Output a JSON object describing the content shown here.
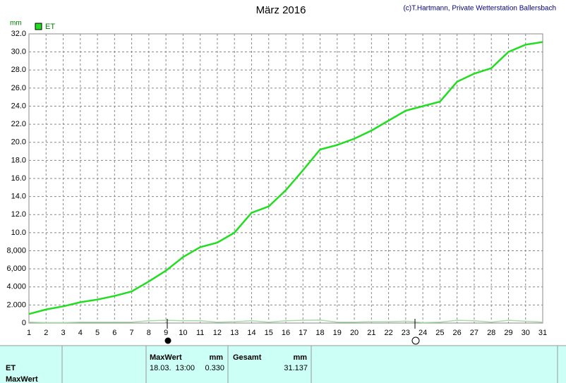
{
  "chart_data": {
    "type": "line",
    "title": "März 2016",
    "subtitle": "(c)T.Hartmann, Private Wetterstation Ballersbach",
    "y_label": "mm",
    "x": [
      1,
      2,
      3,
      4,
      5,
      6,
      7,
      8,
      9,
      10,
      11,
      12,
      13,
      14,
      15,
      16,
      17,
      18,
      19,
      20,
      21,
      22,
      23,
      24,
      25,
      26,
      27,
      28,
      29,
      30,
      31
    ],
    "series": [
      {
        "name": "ET",
        "color": "#22dd22",
        "values": [
          1.0,
          1.5,
          1.85,
          2.3,
          2.6,
          3.0,
          3.5,
          4.6,
          5.8,
          7.3,
          8.4,
          8.9,
          10.0,
          12.2,
          12.9,
          14.7,
          16.9,
          19.2,
          19.7,
          20.4,
          21.3,
          22.4,
          23.5,
          24.0,
          24.5,
          26.7,
          27.6,
          28.2,
          30.0,
          30.8,
          31.1
        ]
      },
      {
        "color": "#a9d9a9",
        "values": [
          0.1,
          0.05,
          0.05,
          0.1,
          0.1,
          0.1,
          0.1,
          0.25,
          0.3,
          0.25,
          0.25,
          0.1,
          0.15,
          0.25,
          0.1,
          0.25,
          0.3,
          0.33,
          0.1,
          0.1,
          0.15,
          0.15,
          0.2,
          0.05,
          0.1,
          0.3,
          0.25,
          0.1,
          0.3,
          0.2,
          0.1
        ]
      }
    ],
    "xlim": [
      1,
      31
    ],
    "xticks": [
      1,
      2,
      3,
      4,
      5,
      6,
      7,
      8,
      9,
      10,
      11,
      12,
      13,
      14,
      15,
      16,
      17,
      18,
      19,
      20,
      21,
      22,
      23,
      24,
      25,
      26,
      27,
      28,
      29,
      30,
      31
    ],
    "ylim": [
      0,
      32
    ],
    "yticks": [
      0,
      {
        "value": 2,
        "label": "2.000"
      },
      {
        "value": 4,
        "label": "4.000"
      },
      {
        "value": 6,
        "label": "6,000"
      },
      {
        "value": 8,
        "label": "8,000"
      },
      {
        "value": 10,
        "label": "10.0"
      },
      {
        "value": 12,
        "label": "12.0"
      },
      {
        "value": 14,
        "label": "14.0"
      },
      {
        "value": 16,
        "label": "16.0"
      },
      {
        "value": 18,
        "label": "18.0"
      },
      {
        "value": 20,
        "label": "20.0"
      },
      {
        "value": 22,
        "label": "22.0"
      },
      {
        "value": 24,
        "label": "24.0"
      },
      {
        "value": 26,
        "label": "26.0"
      },
      {
        "value": 28,
        "label": "28.0"
      },
      {
        "value": 30,
        "label": "30.0"
      },
      {
        "value": 32,
        "label": "32.0"
      }
    ],
    "grid": true
  },
  "table": {
    "row_labels": [
      "ET",
      "MaxWert"
    ],
    "maxwert": {
      "header": "MaxWert",
      "unit": "mm",
      "date": "18.03.",
      "time": "13:00",
      "value": "0.330"
    },
    "gesamt": {
      "header": "Gesamt",
      "unit": "mm",
      "value": "31.137"
    }
  }
}
